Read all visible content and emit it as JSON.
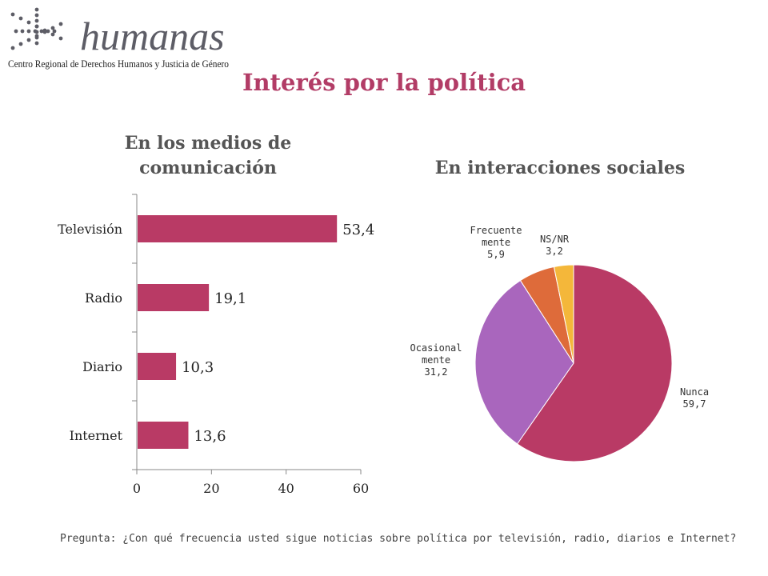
{
  "logo": {
    "word": "humanas",
    "subtitle": "Centro Regional de Derechos Humanos y Justicia de Género"
  },
  "title": "Interés por la política",
  "colors": {
    "title": "#b23c66",
    "bar": "#b93a65",
    "pie": [
      "#b93a65",
      "#a966bd",
      "#de6b3a",
      "#f4b73a"
    ]
  },
  "chart_data": [
    {
      "type": "bar",
      "orientation": "horizontal",
      "title": "En los medios de comunicación",
      "categories": [
        "Televisión",
        "Radio",
        "Diario",
        "Internet"
      ],
      "values": [
        53.4,
        19.1,
        10.3,
        13.6
      ],
      "value_labels": [
        "53,4",
        "19,1",
        "10,3",
        "13,6"
      ],
      "xlim": [
        0,
        60
      ],
      "xticks": [
        0,
        20,
        40,
        60
      ],
      "grid": false
    },
    {
      "type": "pie",
      "title": "En interacciones sociales",
      "slices": [
        {
          "label": [
            "Nunca"
          ],
          "value": 59.7,
          "value_label": "59,7"
        },
        {
          "label": [
            "Ocasional",
            "mente"
          ],
          "value": 31.2,
          "value_label": "31,2"
        },
        {
          "label": [
            "Frecuente",
            "mente"
          ],
          "value": 5.9,
          "value_label": "5,9"
        },
        {
          "label": [
            "NS/NR"
          ],
          "value": 3.2,
          "value_label": "3,2"
        }
      ]
    }
  ],
  "footnote": "Pregunta: ¿Con qué frecuencia usted sigue noticias sobre política por televisión, radio, diarios e Internet?"
}
